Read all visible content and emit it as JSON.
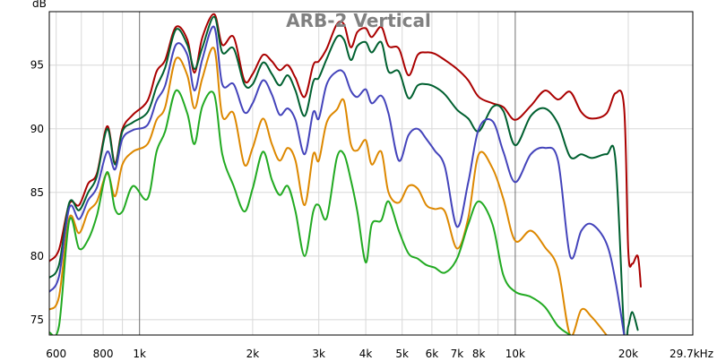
{
  "chart_data": {
    "type": "line",
    "title": "ARB-2 Vertical",
    "ylabel": "dB",
    "x_scale": "log",
    "xlim": [
      575,
      29700
    ],
    "ylim": [
      73.8,
      99.2
    ],
    "grid": true,
    "x_ticks": [
      {
        "v": 600,
        "label": "600",
        "major": false
      },
      {
        "v": 800,
        "label": "800",
        "major": false
      },
      {
        "v": 1000,
        "label": "1k",
        "major": true
      },
      {
        "v": 2000,
        "label": "2k",
        "major": false
      },
      {
        "v": 3000,
        "label": "3k",
        "major": false
      },
      {
        "v": 4000,
        "label": "4k",
        "major": false
      },
      {
        "v": 5000,
        "label": "5k",
        "major": false
      },
      {
        "v": 6000,
        "label": "6k",
        "major": false
      },
      {
        "v": 7000,
        "label": "7k",
        "major": false
      },
      {
        "v": 8000,
        "label": "8k",
        "major": false
      },
      {
        "v": 10000,
        "label": "10k",
        "major": true
      },
      {
        "v": 20000,
        "label": "20k",
        "major": false
      },
      {
        "v": 29700,
        "label": "29.7kHz",
        "major": false
      }
    ],
    "y_ticks": [
      {
        "v": 75,
        "label": "75"
      },
      {
        "v": 80,
        "label": "80"
      },
      {
        "v": 85,
        "label": "85"
      },
      {
        "v": 90,
        "label": "90"
      },
      {
        "v": 95,
        "label": "95"
      }
    ],
    "series": [
      {
        "color": "#aa0000",
        "points": [
          [
            575,
            79.6
          ],
          [
            610,
            80.5
          ],
          [
            650,
            84.1
          ],
          [
            690,
            84
          ],
          [
            730,
            85.7
          ],
          [
            770,
            86.5
          ],
          [
            820,
            90.2
          ],
          [
            860,
            87.3
          ],
          [
            900,
            90
          ],
          [
            960,
            91.1
          ],
          [
            1050,
            92.2
          ],
          [
            1110,
            94.5
          ],
          [
            1170,
            95.4
          ],
          [
            1250,
            98
          ],
          [
            1340,
            97
          ],
          [
            1400,
            94.4
          ],
          [
            1470,
            97.2
          ],
          [
            1580,
            99
          ],
          [
            1660,
            96.6
          ],
          [
            1780,
            97.2
          ],
          [
            1900,
            93.8
          ],
          [
            2000,
            94.3
          ],
          [
            2130,
            95.8
          ],
          [
            2250,
            95.3
          ],
          [
            2360,
            94.6
          ],
          [
            2480,
            95
          ],
          [
            2600,
            94
          ],
          [
            2750,
            92.5
          ],
          [
            2900,
            95
          ],
          [
            3000,
            95.3
          ],
          [
            3150,
            96.3
          ],
          [
            3350,
            98.2
          ],
          [
            3500,
            98.2
          ],
          [
            3650,
            96.4
          ],
          [
            3800,
            97.6
          ],
          [
            4000,
            97.9
          ],
          [
            4150,
            97.2
          ],
          [
            4400,
            98
          ],
          [
            4600,
            96.5
          ],
          [
            4900,
            96.3
          ],
          [
            5200,
            94.2
          ],
          [
            5500,
            95.8
          ],
          [
            5800,
            96
          ],
          [
            6100,
            95.9
          ],
          [
            6500,
            95.4
          ],
          [
            7000,
            94.7
          ],
          [
            7500,
            93.8
          ],
          [
            8000,
            92.5
          ],
          [
            8700,
            92
          ],
          [
            9300,
            91.7
          ],
          [
            10000,
            90.7
          ],
          [
            11000,
            91.8
          ],
          [
            12000,
            93
          ],
          [
            13000,
            92.3
          ],
          [
            14000,
            92.9
          ],
          [
            15000,
            91.3
          ],
          [
            16000,
            90.8
          ],
          [
            17500,
            91.2
          ],
          [
            18500,
            92.8
          ],
          [
            19500,
            91.6
          ],
          [
            20000,
            80.4
          ],
          [
            20500,
            79.4
          ],
          [
            21200,
            80
          ],
          [
            21600,
            77.6
          ]
        ]
      },
      {
        "color": "#006030",
        "points": [
          [
            575,
            78.3
          ],
          [
            610,
            79.3
          ],
          [
            650,
            84.2
          ],
          [
            690,
            83.6
          ],
          [
            730,
            85
          ],
          [
            770,
            86.3
          ],
          [
            820,
            90
          ],
          [
            860,
            87.2
          ],
          [
            900,
            89.8
          ],
          [
            960,
            90.5
          ],
          [
            1050,
            91.3
          ],
          [
            1110,
            93.3
          ],
          [
            1170,
            94.8
          ],
          [
            1250,
            97.8
          ],
          [
            1340,
            96.6
          ],
          [
            1400,
            94.7
          ],
          [
            1470,
            96.4
          ],
          [
            1580,
            98.8
          ],
          [
            1660,
            96
          ],
          [
            1780,
            96.3
          ],
          [
            1900,
            93.5
          ],
          [
            2000,
            93.5
          ],
          [
            2130,
            95.2
          ],
          [
            2250,
            94.3
          ],
          [
            2360,
            93.4
          ],
          [
            2480,
            94.2
          ],
          [
            2600,
            93
          ],
          [
            2750,
            91
          ],
          [
            2900,
            93.7
          ],
          [
            3000,
            94
          ],
          [
            3150,
            95.5
          ],
          [
            3350,
            97.2
          ],
          [
            3500,
            97
          ],
          [
            3650,
            95.4
          ],
          [
            3800,
            96.5
          ],
          [
            4000,
            96.8
          ],
          [
            4150,
            96
          ],
          [
            4400,
            96.8
          ],
          [
            4600,
            94.5
          ],
          [
            4900,
            94.5
          ],
          [
            5200,
            92.4
          ],
          [
            5500,
            93.4
          ],
          [
            5800,
            93.5
          ],
          [
            6100,
            93.3
          ],
          [
            6500,
            92.7
          ],
          [
            7000,
            91.5
          ],
          [
            7500,
            90.8
          ],
          [
            8000,
            89.8
          ],
          [
            8700,
            91.7
          ],
          [
            9300,
            91.4
          ],
          [
            10000,
            88.7
          ],
          [
            11000,
            91
          ],
          [
            12000,
            91.6
          ],
          [
            13000,
            90.4
          ],
          [
            14000,
            87.8
          ],
          [
            15000,
            88
          ],
          [
            16000,
            87.7
          ],
          [
            17500,
            88
          ],
          [
            18500,
            87.5
          ],
          [
            19500,
            74
          ],
          [
            20000,
            74.5
          ],
          [
            20500,
            75.6
          ],
          [
            21200,
            74.2
          ]
        ]
      },
      {
        "color": "#4444bb",
        "points": [
          [
            575,
            77.2
          ],
          [
            610,
            78.4
          ],
          [
            650,
            83.8
          ],
          [
            690,
            82.9
          ],
          [
            730,
            84.4
          ],
          [
            770,
            85.4
          ],
          [
            820,
            88.2
          ],
          [
            860,
            86.8
          ],
          [
            900,
            89.2
          ],
          [
            960,
            89.9
          ],
          [
            1050,
            90.3
          ],
          [
            1110,
            92.2
          ],
          [
            1170,
            93.4
          ],
          [
            1250,
            96.6
          ],
          [
            1340,
            95.8
          ],
          [
            1400,
            93
          ],
          [
            1470,
            95.5
          ],
          [
            1580,
            98
          ],
          [
            1660,
            93.5
          ],
          [
            1780,
            93.5
          ],
          [
            1900,
            91.3
          ],
          [
            2000,
            92
          ],
          [
            2130,
            93.8
          ],
          [
            2250,
            92.7
          ],
          [
            2360,
            91.1
          ],
          [
            2480,
            91.6
          ],
          [
            2600,
            90.7
          ],
          [
            2750,
            88
          ],
          [
            2900,
            91.3
          ],
          [
            3000,
            90.8
          ],
          [
            3150,
            93.5
          ],
          [
            3350,
            94.5
          ],
          [
            3500,
            94.4
          ],
          [
            3650,
            93
          ],
          [
            3800,
            92.5
          ],
          [
            4000,
            93.1
          ],
          [
            4150,
            92
          ],
          [
            4400,
            92.6
          ],
          [
            4600,
            91.2
          ],
          [
            4900,
            87.5
          ],
          [
            5200,
            89.5
          ],
          [
            5500,
            90
          ],
          [
            5800,
            89.2
          ],
          [
            6100,
            88.3
          ],
          [
            6500,
            87
          ],
          [
            7000,
            82.3
          ],
          [
            7500,
            85.8
          ],
          [
            8000,
            90
          ],
          [
            8700,
            90.6
          ],
          [
            9300,
            88.2
          ],
          [
            10000,
            85.8
          ],
          [
            11000,
            88
          ],
          [
            12000,
            88.5
          ],
          [
            13000,
            87.5
          ],
          [
            14000,
            80
          ],
          [
            15000,
            82
          ],
          [
            16000,
            82.5
          ],
          [
            17500,
            81
          ],
          [
            18500,
            78
          ],
          [
            19500,
            73.8
          ]
        ]
      },
      {
        "color": "#dd8800",
        "points": [
          [
            575,
            75.8
          ],
          [
            610,
            76.8
          ],
          [
            650,
            83
          ],
          [
            690,
            81.8
          ],
          [
            730,
            83.5
          ],
          [
            770,
            84.3
          ],
          [
            820,
            86.5
          ],
          [
            860,
            84.7
          ],
          [
            900,
            87.2
          ],
          [
            960,
            88.2
          ],
          [
            1050,
            88.8
          ],
          [
            1110,
            90.7
          ],
          [
            1170,
            91.7
          ],
          [
            1250,
            95.5
          ],
          [
            1340,
            94.2
          ],
          [
            1400,
            91.6
          ],
          [
            1470,
            94
          ],
          [
            1580,
            96.3
          ],
          [
            1660,
            91
          ],
          [
            1780,
            91.2
          ],
          [
            1900,
            87.2
          ],
          [
            2000,
            88.5
          ],
          [
            2130,
            90.8
          ],
          [
            2250,
            88.8
          ],
          [
            2360,
            87.5
          ],
          [
            2480,
            88.5
          ],
          [
            2600,
            87.5
          ],
          [
            2750,
            84
          ],
          [
            2900,
            88
          ],
          [
            3000,
            87.5
          ],
          [
            3150,
            90.5
          ],
          [
            3350,
            91.5
          ],
          [
            3500,
            92.2
          ],
          [
            3650,
            88.8
          ],
          [
            3800,
            88.3
          ],
          [
            4000,
            89.1
          ],
          [
            4150,
            87.2
          ],
          [
            4400,
            88.2
          ],
          [
            4600,
            85
          ],
          [
            4900,
            84.2
          ],
          [
            5200,
            85.5
          ],
          [
            5500,
            85.3
          ],
          [
            5800,
            84
          ],
          [
            6100,
            83.7
          ],
          [
            6500,
            83.5
          ],
          [
            7000,
            80.6
          ],
          [
            7500,
            83
          ],
          [
            8000,
            88
          ],
          [
            8700,
            86.9
          ],
          [
            9300,
            84.5
          ],
          [
            10000,
            81.2
          ],
          [
            11000,
            82
          ],
          [
            12000,
            80.7
          ],
          [
            13000,
            79
          ],
          [
            14000,
            73.8
          ],
          [
            15000,
            75.8
          ],
          [
            16000,
            75.2
          ],
          [
            17500,
            73.8
          ]
        ]
      },
      {
        "color": "#22aa22",
        "points": [
          [
            575,
            74
          ],
          [
            610,
            74.5
          ],
          [
            650,
            82.8
          ],
          [
            690,
            80.6
          ],
          [
            730,
            81.3
          ],
          [
            770,
            83.2
          ],
          [
            820,
            86.6
          ],
          [
            860,
            83.7
          ],
          [
            900,
            83.5
          ],
          [
            960,
            85.5
          ],
          [
            1050,
            84.5
          ],
          [
            1110,
            88.2
          ],
          [
            1170,
            89.8
          ],
          [
            1250,
            93
          ],
          [
            1340,
            91.2
          ],
          [
            1400,
            88.8
          ],
          [
            1470,
            91.8
          ],
          [
            1580,
            92.7
          ],
          [
            1660,
            88
          ],
          [
            1780,
            85.5
          ],
          [
            1900,
            83.5
          ],
          [
            2000,
            85.3
          ],
          [
            2130,
            88.2
          ],
          [
            2250,
            86
          ],
          [
            2360,
            84.8
          ],
          [
            2480,
            85.5
          ],
          [
            2600,
            83.5
          ],
          [
            2750,
            80
          ],
          [
            2900,
            83.5
          ],
          [
            3000,
            84
          ],
          [
            3150,
            83
          ],
          [
            3350,
            87.7
          ],
          [
            3500,
            88
          ],
          [
            3650,
            86
          ],
          [
            3800,
            83.5
          ],
          [
            4000,
            79.5
          ],
          [
            4150,
            82.5
          ],
          [
            4400,
            82.8
          ],
          [
            4600,
            84.3
          ],
          [
            4900,
            82
          ],
          [
            5200,
            80.2
          ],
          [
            5500,
            79.8
          ],
          [
            5800,
            79.3
          ],
          [
            6100,
            79.1
          ],
          [
            6500,
            78.7
          ],
          [
            7000,
            79.8
          ],
          [
            7500,
            82.5
          ],
          [
            8000,
            84.3
          ],
          [
            8700,
            82.5
          ],
          [
            9300,
            78.5
          ],
          [
            10000,
            77.2
          ],
          [
            11000,
            76.8
          ],
          [
            12000,
            76
          ],
          [
            13000,
            74.5
          ],
          [
            14000,
            73.8
          ]
        ]
      }
    ]
  }
}
